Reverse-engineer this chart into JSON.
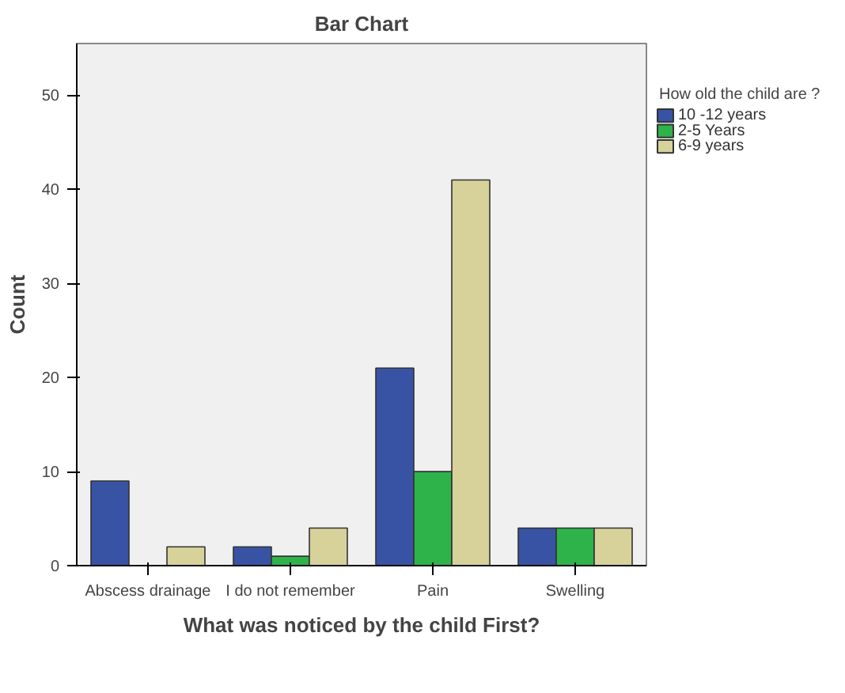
{
  "chart_data": {
    "type": "bar",
    "title": "Bar Chart",
    "xlabel": "What was noticed by the child First?",
    "ylabel": "Count",
    "legend_title": "How old the child are ?",
    "categories": [
      "Abscess drainage",
      "I do not remember",
      "Pain",
      "Swelling"
    ],
    "series": [
      {
        "name": "10 -12  years",
        "color": "#3953a4",
        "values": [
          9,
          2,
          21,
          4
        ]
      },
      {
        "name": "2-5 Years",
        "color": "#2db34a",
        "values": [
          null,
          1,
          10,
          4
        ]
      },
      {
        "name": "6-9  years",
        "color": "#d6d29a",
        "values": [
          2,
          4,
          41,
          4
        ]
      }
    ],
    "ylim": [
      0,
      55.5
    ],
    "yticks": [
      0,
      10,
      20,
      30,
      40,
      50
    ],
    "grid": false,
    "legend": "right"
  }
}
